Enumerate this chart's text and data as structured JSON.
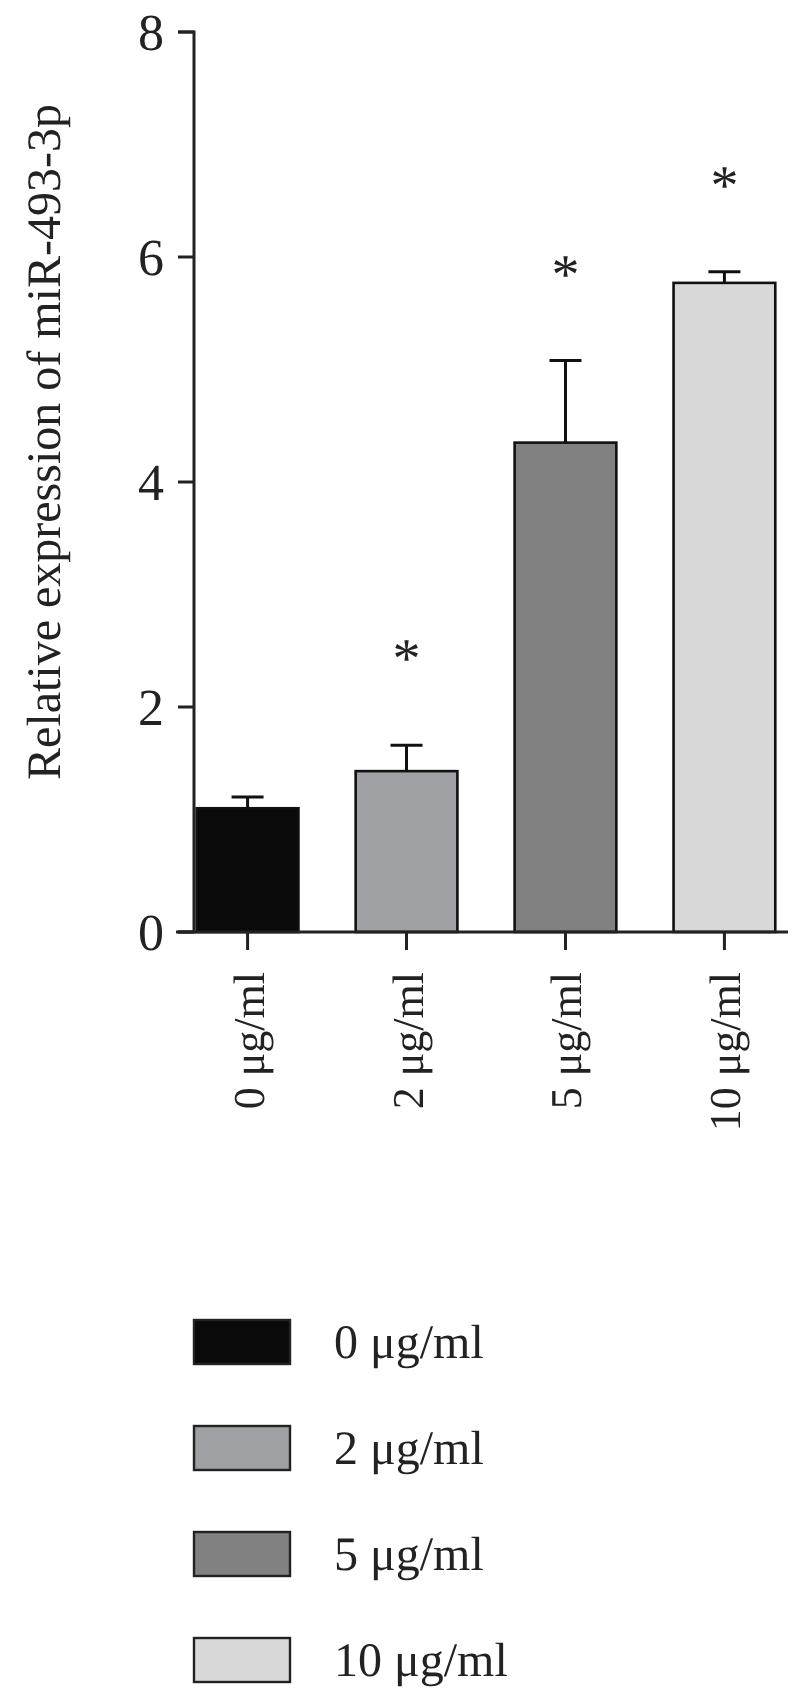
{
  "chart_data": {
    "type": "bar",
    "ylabel": "Relative expression of miR-493-3p",
    "categories": [
      "0 μg/ml",
      "2 μg/ml",
      "5 μg/ml",
      "10 μg/ml"
    ],
    "series": [
      {
        "name": "0 μg/ml",
        "color": "#0a0a0b",
        "values": [
          1.1,
          null,
          null,
          null
        ],
        "errors": [
          [
            1.1,
            1.2
          ],
          null,
          null,
          null
        ]
      },
      {
        "name": "2 μg/ml",
        "color": "#a0a1a4",
        "values": [
          null,
          1.43,
          null,
          null
        ],
        "errors": [
          null,
          [
            1.43,
            1.66
          ],
          null,
          null
        ]
      },
      {
        "name": "5 μg/ml",
        "color": "#808180",
        "values": [
          null,
          null,
          4.35,
          null
        ],
        "errors": [
          null,
          null,
          [
            4.35,
            5.08
          ],
          null
        ]
      },
      {
        "name": "10 μg/ml",
        "color": "#d8d8d8",
        "values": [
          null,
          null,
          null,
          5.77
        ],
        "errors": [
          null,
          null,
          null,
          [
            5.77,
            5.87
          ]
        ]
      }
    ],
    "ylim": [
      0,
      8
    ],
    "yticks": [
      0,
      2,
      4,
      6,
      8
    ],
    "annotations": [
      "*",
      "*",
      "*"
    ],
    "legend": "bottom"
  }
}
